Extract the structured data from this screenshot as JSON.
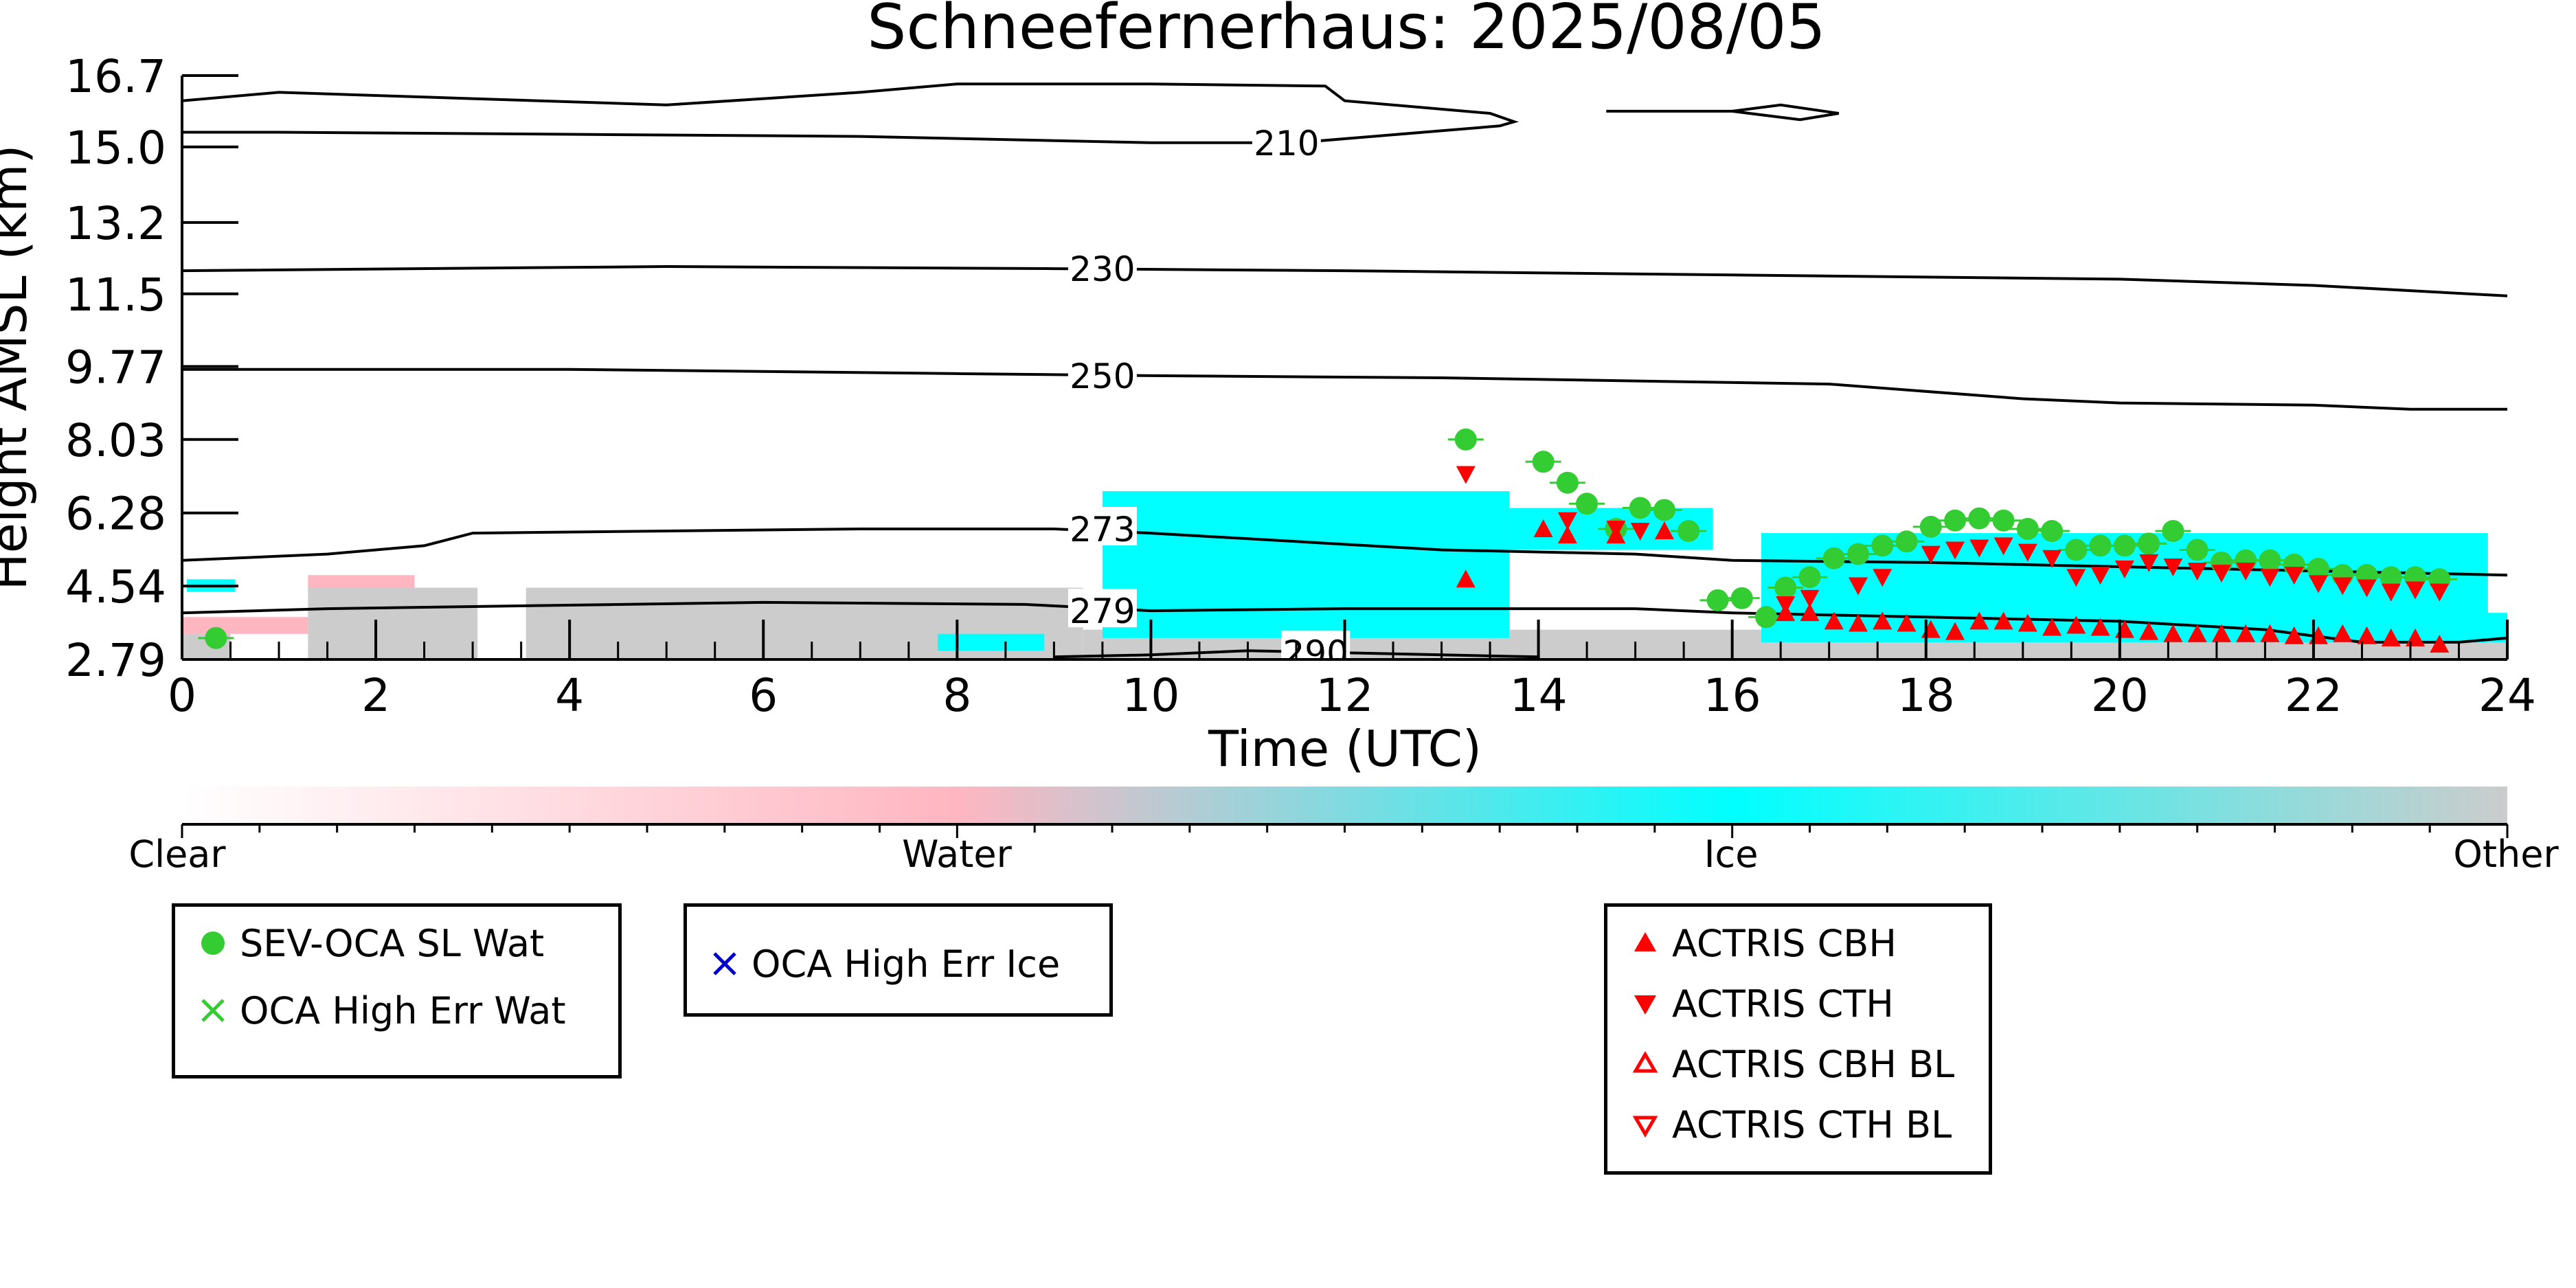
{
  "chart_data": {
    "type": "scatter",
    "title": "Schneefernerhaus: 2025/08/05",
    "xlabel": "Time (UTC)",
    "ylabel": "Height AMSL (km)",
    "xlim": [
      0,
      24
    ],
    "ylim": [
      2.79,
      16.7
    ],
    "x_ticks": [
      "0",
      "2",
      "4",
      "6",
      "8",
      "10",
      "12",
      "14",
      "16",
      "18",
      "20",
      "22",
      "24"
    ],
    "y_ticks": [
      "2.79",
      "4.54",
      "6.28",
      "8.03",
      "9.77",
      "11.5",
      "13.2",
      "15.0",
      "16.7"
    ],
    "grid": false,
    "background_mask_colors": {
      "other": "#cccccc",
      "ice": "#00ffff",
      "water": "#ffb6c1"
    },
    "background_mask": [
      {
        "class": "other",
        "t0": 1.3,
        "t1": 3.05,
        "h0": 2.79,
        "h1": 4.5
      },
      {
        "class": "other",
        "t0": 3.55,
        "t1": 9.3,
        "h0": 2.79,
        "h1": 4.5
      },
      {
        "class": "other",
        "t0": 0.0,
        "t1": 0.5,
        "h0": 2.79,
        "h1": 3.4
      },
      {
        "class": "other",
        "t0": 9.3,
        "t1": 24.0,
        "h0": 2.79,
        "h1": 3.5
      },
      {
        "class": "water",
        "t0": 0.0,
        "t1": 1.3,
        "h0": 3.4,
        "h1": 3.8
      },
      {
        "class": "water",
        "t0": 1.3,
        "t1": 2.4,
        "h0": 4.5,
        "h1": 4.8
      },
      {
        "class": "ice",
        "t0": 0.05,
        "t1": 0.55,
        "h0": 4.4,
        "h1": 4.7
      },
      {
        "class": "ice",
        "t0": 7.8,
        "t1": 8.9,
        "h0": 3.0,
        "h1": 3.4
      },
      {
        "class": "ice",
        "t0": 9.5,
        "t1": 13.7,
        "h0": 3.3,
        "h1": 6.8
      },
      {
        "class": "ice",
        "t0": 13.7,
        "t1": 15.8,
        "h0": 5.4,
        "h1": 6.4
      },
      {
        "class": "ice",
        "t0": 16.3,
        "t1": 23.8,
        "h0": 3.2,
        "h1": 5.8
      },
      {
        "class": "ice",
        "t0": 23.5,
        "t1": 24.0,
        "h0": 3.2,
        "h1": 3.9
      }
    ],
    "contours": [
      {
        "label": "210",
        "label_at": 11.4,
        "points": [
          [
            0,
            16.1
          ],
          [
            1,
            16.3
          ],
          [
            3,
            16.15
          ],
          [
            5,
            16.0
          ],
          [
            7,
            16.3
          ],
          [
            8,
            16.5
          ],
          [
            10,
            16.5
          ],
          [
            11.8,
            16.45
          ],
          [
            12,
            16.1
          ],
          [
            13.5,
            15.8
          ],
          [
            13.75,
            15.6
          ],
          [
            13.6,
            15.5
          ],
          [
            11.5,
            15.1
          ],
          [
            10,
            15.1
          ],
          [
            7,
            15.25
          ],
          [
            4,
            15.3
          ],
          [
            1,
            15.35
          ],
          [
            0,
            15.35
          ]
        ]
      },
      {
        "label": "",
        "label_at": null,
        "points": [
          [
            14.7,
            15.85
          ],
          [
            16,
            15.85
          ],
          [
            16.5,
            16.0
          ],
          [
            17.1,
            15.8
          ],
          [
            16.7,
            15.65
          ],
          [
            16,
            15.85
          ]
        ]
      },
      {
        "label": "230",
        "label_at": 9.5,
        "points": [
          [
            0,
            12.05
          ],
          [
            5,
            12.15
          ],
          [
            9,
            12.1
          ],
          [
            12,
            12.05
          ],
          [
            16,
            11.95
          ],
          [
            20,
            11.85
          ],
          [
            22,
            11.7
          ],
          [
            24,
            11.45
          ]
        ]
      },
      {
        "label": "250",
        "label_at": 9.5,
        "points": [
          [
            0,
            9.7
          ],
          [
            4,
            9.7
          ],
          [
            8,
            9.6
          ],
          [
            10,
            9.55
          ],
          [
            13,
            9.5
          ],
          [
            17,
            9.35
          ],
          [
            19,
            9.0
          ],
          [
            20,
            8.9
          ],
          [
            22,
            8.85
          ],
          [
            23,
            8.75
          ],
          [
            24,
            8.75
          ]
        ]
      },
      {
        "label": "273",
        "label_at": 9.5,
        "points": [
          [
            0,
            5.15
          ],
          [
            1.5,
            5.3
          ],
          [
            2.5,
            5.5
          ],
          [
            3,
            5.8
          ],
          [
            5,
            5.85
          ],
          [
            7,
            5.9
          ],
          [
            9,
            5.9
          ],
          [
            10,
            5.8
          ],
          [
            11.5,
            5.6
          ],
          [
            13,
            5.4
          ],
          [
            15,
            5.3
          ],
          [
            16,
            5.15
          ],
          [
            18,
            5.1
          ],
          [
            20,
            5.0
          ],
          [
            22,
            4.9
          ],
          [
            24,
            4.8
          ]
        ]
      },
      {
        "label": "279",
        "label_at": 9.5,
        "points": [
          [
            0,
            3.9
          ],
          [
            1.5,
            4.0
          ],
          [
            3,
            4.05
          ],
          [
            6,
            4.15
          ],
          [
            8.7,
            4.1
          ],
          [
            10,
            3.95
          ],
          [
            12,
            4.0
          ],
          [
            15,
            4.0
          ],
          [
            16,
            3.9
          ],
          [
            18,
            3.8
          ],
          [
            20,
            3.7
          ],
          [
            21.5,
            3.5
          ],
          [
            22.5,
            3.2
          ],
          [
            23.5,
            3.2
          ],
          [
            24,
            3.3
          ]
        ]
      },
      {
        "label": "290",
        "label_at": 11.7,
        "points": [
          [
            9,
            2.85
          ],
          [
            10,
            2.9
          ],
          [
            11,
            3.0
          ],
          [
            12,
            2.95
          ],
          [
            13,
            2.9
          ],
          [
            14,
            2.85
          ]
        ]
      }
    ],
    "series": [
      {
        "name": "SEV-OCA SL Wat",
        "marker": "filled-circle",
        "color": "#33cc33",
        "points": [
          [
            0.35,
            3.3
          ],
          [
            13.25,
            8.03
          ],
          [
            14.05,
            7.5
          ],
          [
            14.3,
            7.0
          ],
          [
            14.5,
            6.5
          ],
          [
            14.8,
            5.9
          ],
          [
            15.05,
            6.4
          ],
          [
            15.3,
            6.35
          ],
          [
            15.55,
            5.85
          ],
          [
            15.85,
            4.2
          ],
          [
            16.1,
            4.25
          ],
          [
            16.35,
            3.8
          ],
          [
            16.55,
            4.5
          ],
          [
            16.8,
            4.75
          ],
          [
            17.05,
            5.2
          ],
          [
            17.3,
            5.3
          ],
          [
            17.55,
            5.5
          ],
          [
            17.8,
            5.6
          ],
          [
            18.05,
            5.95
          ],
          [
            18.3,
            6.1
          ],
          [
            18.55,
            6.15
          ],
          [
            18.8,
            6.1
          ],
          [
            19.05,
            5.9
          ],
          [
            19.3,
            5.85
          ],
          [
            19.55,
            5.4
          ],
          [
            19.8,
            5.5
          ],
          [
            20.05,
            5.5
          ],
          [
            20.3,
            5.55
          ],
          [
            20.55,
            5.85
          ],
          [
            20.8,
            5.4
          ],
          [
            21.05,
            5.1
          ],
          [
            21.3,
            5.15
          ],
          [
            21.55,
            5.15
          ],
          [
            21.8,
            5.05
          ],
          [
            22.05,
            4.95
          ],
          [
            22.3,
            4.8
          ],
          [
            22.55,
            4.8
          ],
          [
            22.8,
            4.75
          ],
          [
            23.05,
            4.75
          ],
          [
            23.3,
            4.7
          ]
        ]
      },
      {
        "name": "OCA High Err Wat",
        "marker": "x",
        "color": "#33cc33",
        "points": []
      },
      {
        "name": "OCA High Err Ice",
        "marker": "x",
        "color": "#0000cc",
        "points": []
      },
      {
        "name": "ACTRIS CBH",
        "marker": "filled-triangle-up",
        "color": "#ff0000",
        "points": [
          [
            13.25,
            4.7
          ],
          [
            14.05,
            5.9
          ],
          [
            14.3,
            5.75
          ],
          [
            14.8,
            5.75
          ],
          [
            15.3,
            5.85
          ],
          [
            16.55,
            3.9
          ],
          [
            16.8,
            3.9
          ],
          [
            17.05,
            3.7
          ],
          [
            17.3,
            3.65
          ],
          [
            17.55,
            3.7
          ],
          [
            17.8,
            3.65
          ],
          [
            18.05,
            3.5
          ],
          [
            18.3,
            3.45
          ],
          [
            18.55,
            3.7
          ],
          [
            18.8,
            3.7
          ],
          [
            19.05,
            3.65
          ],
          [
            19.3,
            3.55
          ],
          [
            19.55,
            3.6
          ],
          [
            19.8,
            3.55
          ],
          [
            20.05,
            3.5
          ],
          [
            20.3,
            3.45
          ],
          [
            20.55,
            3.4
          ],
          [
            20.8,
            3.4
          ],
          [
            21.05,
            3.4
          ],
          [
            21.3,
            3.4
          ],
          [
            21.55,
            3.4
          ],
          [
            21.8,
            3.35
          ],
          [
            22.05,
            3.35
          ],
          [
            22.3,
            3.4
          ],
          [
            22.55,
            3.35
          ],
          [
            22.8,
            3.3
          ],
          [
            23.05,
            3.3
          ],
          [
            23.3,
            3.15
          ]
        ]
      },
      {
        "name": "ACTRIS CTH",
        "marker": "filled-triangle-down",
        "color": "#ff0000",
        "points": [
          [
            13.25,
            7.2
          ],
          [
            14.3,
            6.1
          ],
          [
            14.8,
            5.9
          ],
          [
            15.05,
            5.85
          ],
          [
            16.55,
            4.1
          ],
          [
            16.8,
            4.25
          ],
          [
            17.3,
            4.55
          ],
          [
            17.55,
            4.75
          ],
          [
            18.05,
            5.3
          ],
          [
            18.3,
            5.4
          ],
          [
            18.55,
            5.45
          ],
          [
            18.8,
            5.5
          ],
          [
            19.05,
            5.35
          ],
          [
            19.3,
            5.2
          ],
          [
            19.55,
            4.75
          ],
          [
            19.8,
            4.8
          ],
          [
            20.05,
            4.95
          ],
          [
            20.3,
            5.1
          ],
          [
            20.55,
            5.0
          ],
          [
            20.8,
            4.9
          ],
          [
            21.05,
            4.85
          ],
          [
            21.3,
            4.9
          ],
          [
            21.55,
            4.75
          ],
          [
            21.8,
            4.8
          ],
          [
            22.05,
            4.6
          ],
          [
            22.3,
            4.55
          ],
          [
            22.55,
            4.5
          ],
          [
            22.8,
            4.4
          ],
          [
            23.05,
            4.45
          ],
          [
            23.3,
            4.4
          ]
        ]
      },
      {
        "name": "ACTRIS CBH BL",
        "marker": "open-triangle-up",
        "color": "#ff0000",
        "points": []
      },
      {
        "name": "ACTRIS CTH BL",
        "marker": "open-triangle-down",
        "color": "#ff0000",
        "points": []
      }
    ],
    "colorbar": {
      "labels": [
        "Clear",
        "Water",
        "Ice",
        "Other"
      ],
      "colors": [
        "#ffffff",
        "#ffb6c1",
        "#00ffff",
        "#cccccc"
      ]
    },
    "legend_placement": "below-plot"
  }
}
